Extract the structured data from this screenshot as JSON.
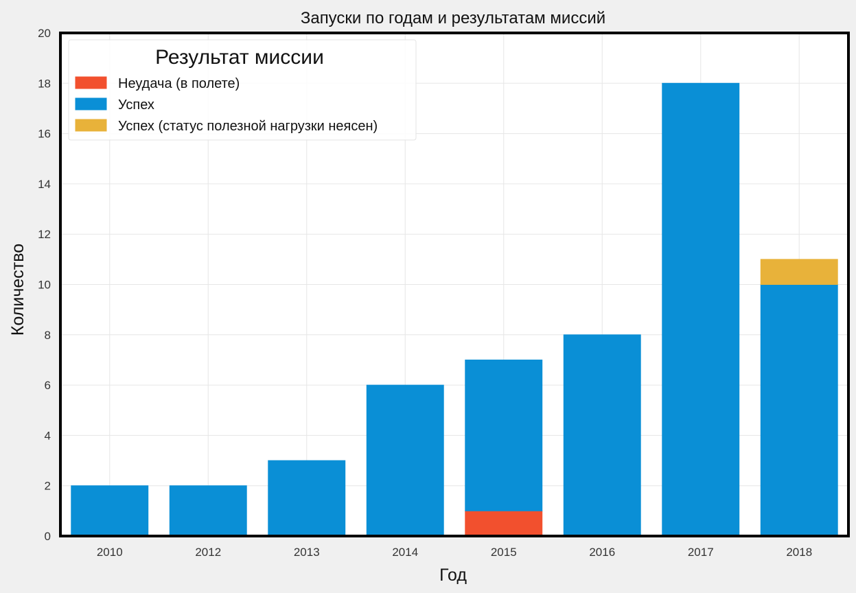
{
  "chart_data": {
    "type": "bar",
    "stacked": true,
    "title": "Запуски по годам и результатам миссий",
    "xlabel": "Год",
    "ylabel": "Количество",
    "categories": [
      "2010",
      "2012",
      "2013",
      "2014",
      "2015",
      "2016",
      "2017",
      "2018"
    ],
    "ylim": [
      0,
      20
    ],
    "yticks": [
      "0",
      "2",
      "4",
      "6",
      "8",
      "10",
      "12",
      "14",
      "16",
      "18",
      "20"
    ],
    "grid": true,
    "legend": {
      "title": "Результат миссии",
      "placement": "top-left"
    },
    "series": [
      {
        "name": "Неудача (в полете)",
        "color": "#f2502e",
        "values": [
          0,
          0,
          0,
          0,
          1,
          0,
          0,
          0
        ]
      },
      {
        "name": "Успех",
        "color": "#0a8fd6",
        "values": [
          2,
          2,
          3,
          6,
          6,
          8,
          18,
          10
        ]
      },
      {
        "name": "Успех (статус полезной нагрузки неясен)",
        "color": "#e8b23a",
        "values": [
          0,
          0,
          0,
          0,
          0,
          0,
          0,
          1
        ]
      }
    ]
  }
}
